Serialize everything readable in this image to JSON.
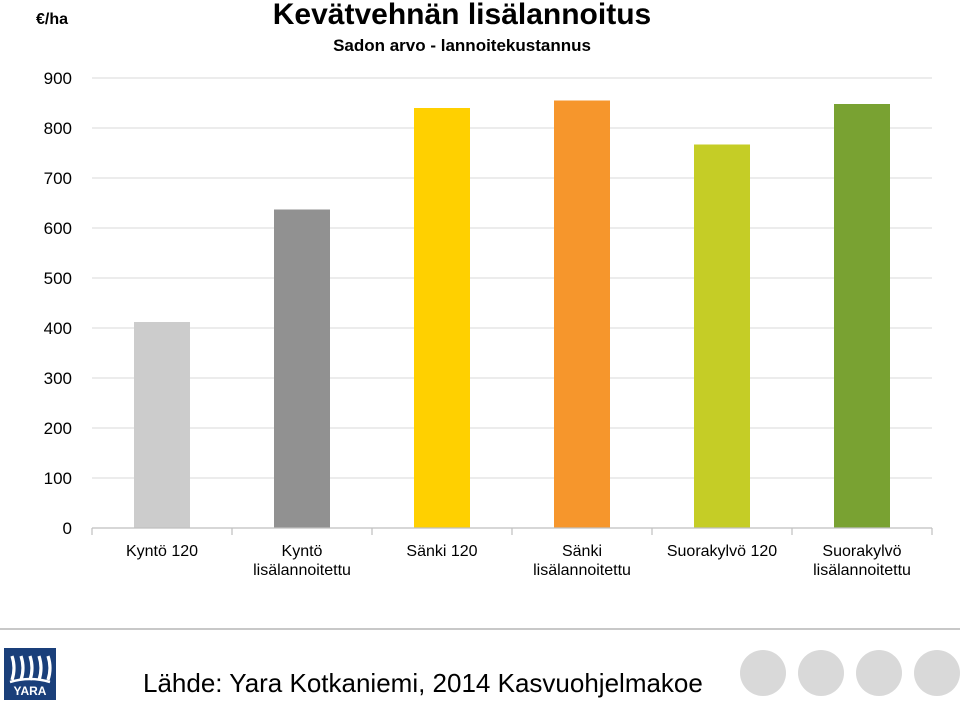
{
  "chart_data": {
    "type": "bar",
    "title": "Kevätvehnän lisälannoitus",
    "subtitle": "Sadon arvo - lannoitekustannus",
    "ylabel": "€/ha",
    "xlabel": "",
    "ylim": [
      0,
      900
    ],
    "yticks": [
      0,
      100,
      200,
      300,
      400,
      500,
      600,
      700,
      800,
      900
    ],
    "grid": true,
    "categories": [
      [
        "Kyntö 120"
      ],
      [
        "Kyntö",
        "lisälannoitettu"
      ],
      [
        "Sänki 120"
      ],
      [
        "Sänki",
        "lisälannoitettu"
      ],
      [
        "Suorakylvö 120"
      ],
      [
        "Suorakylvö",
        "lisälannoitettu"
      ]
    ],
    "values": [
      412,
      637,
      840,
      855,
      767,
      848
    ],
    "colors": [
      "#cccccc",
      "#919191",
      "#ffd000",
      "#f6962c",
      "#c5cd26",
      "#79a232"
    ]
  },
  "footer": {
    "source": "Lähde: Yara Kotkaniemi, 2014 Kasvuohjelmakoe",
    "logo_text": "YARA",
    "logo_color": "#1a3f7a"
  }
}
